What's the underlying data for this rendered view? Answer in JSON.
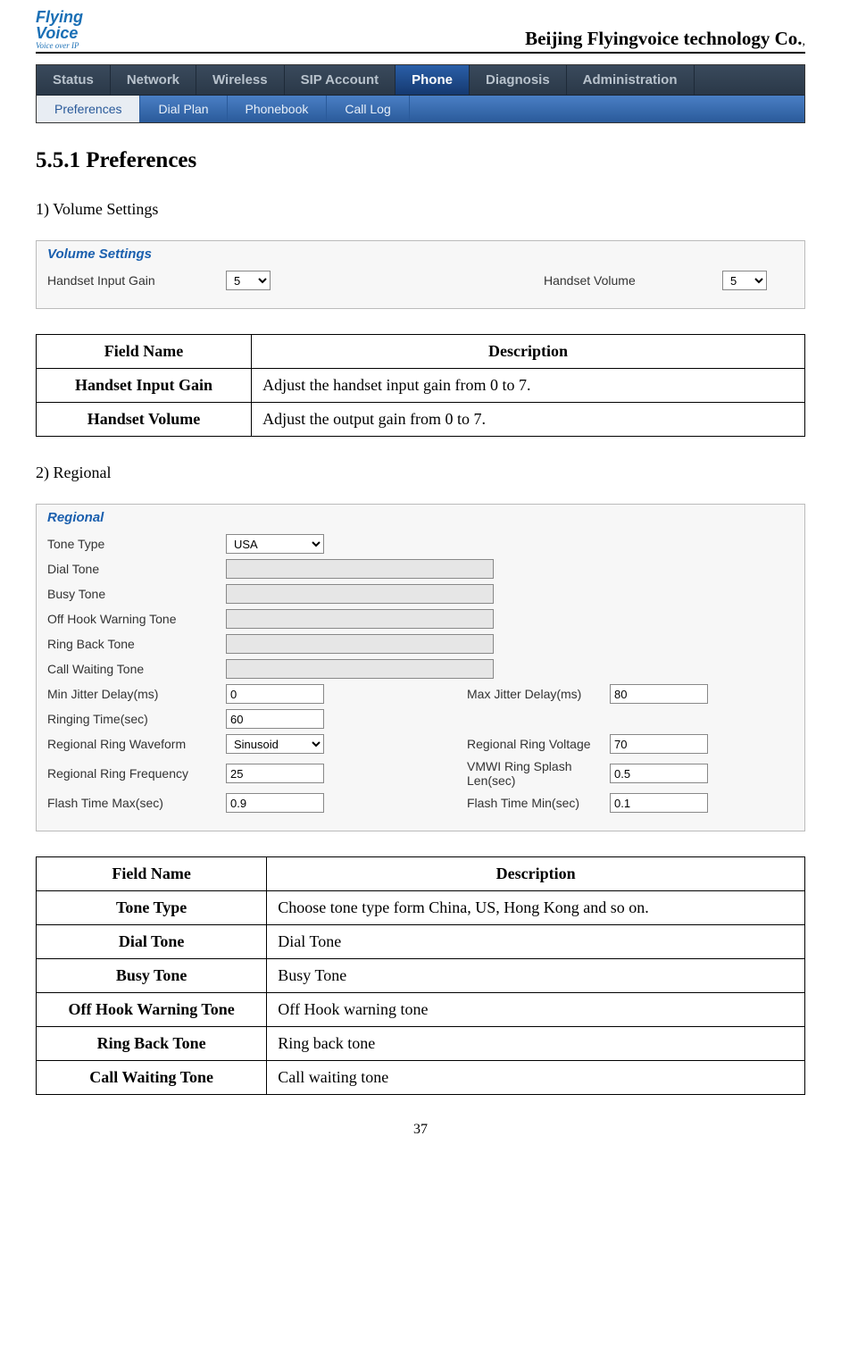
{
  "header": {
    "logo_line1": "Flying",
    "logo_line2": "Voice",
    "logo_sub": "Voice over IP",
    "company": "Beijing Flyingvoice technology Co.",
    "company_suffix": ","
  },
  "nav": {
    "tabs": [
      "Status",
      "Network",
      "Wireless",
      "SIP Account",
      "Phone",
      "Diagnosis",
      "Administration"
    ],
    "active_tab_index": 4,
    "subtabs": [
      "Preferences",
      "Dial Plan",
      "Phonebook",
      "Call Log"
    ],
    "active_sub_index": 0
  },
  "heading": "5.5.1 Preferences",
  "section1": {
    "title": "1) Volume Settings",
    "panel_title": "Volume Settings",
    "left_label": "Handset Input Gain",
    "left_value": "5",
    "right_label": "Handset Volume",
    "right_value": "5"
  },
  "table1": {
    "headers": [
      "Field Name",
      "Description"
    ],
    "rows": [
      [
        "Handset Input Gain",
        "Adjust the handset input gain from 0 to 7."
      ],
      [
        "Handset Volume",
        "Adjust the output gain from 0 to 7."
      ]
    ]
  },
  "section2": {
    "title": "2) Regional",
    "panel_title": "Regional",
    "fields": {
      "tone_type_label": "Tone Type",
      "tone_type_value": "USA",
      "dial_tone_label": "Dial Tone",
      "busy_tone_label": "Busy Tone",
      "off_hook_label": "Off Hook Warning Tone",
      "ring_back_label": "Ring Back Tone",
      "call_wait_label": "Call Waiting Tone",
      "min_jitter_label": "Min Jitter Delay(ms)",
      "min_jitter_value": "0",
      "max_jitter_label": "Max Jitter Delay(ms)",
      "max_jitter_value": "80",
      "ringing_time_label": "Ringing Time(sec)",
      "ringing_time_value": "60",
      "ring_waveform_label": "Regional Ring Waveform",
      "ring_waveform_value": "Sinusoid",
      "ring_voltage_label": "Regional Ring Voltage",
      "ring_voltage_value": "70",
      "ring_freq_label": "Regional Ring Frequency",
      "ring_freq_value": "25",
      "vmwi_label": "VMWI Ring Splash Len(sec)",
      "vmwi_value": "0.5",
      "flash_max_label": "Flash Time Max(sec)",
      "flash_max_value": "0.9",
      "flash_min_label": "Flash Time Min(sec)",
      "flash_min_value": "0.1"
    }
  },
  "table2": {
    "headers": [
      "Field Name",
      "Description"
    ],
    "rows": [
      [
        "Tone Type",
        "Choose tone type form China, US, Hong Kong and so on."
      ],
      [
        "Dial Tone",
        "Dial Tone"
      ],
      [
        "Busy Tone",
        "Busy Tone"
      ],
      [
        "Off Hook Warning Tone",
        "Off Hook warning tone"
      ],
      [
        "Ring Back Tone",
        "Ring back tone"
      ],
      [
        "Call Waiting Tone",
        "Call waiting tone"
      ]
    ]
  },
  "page_number": "37"
}
